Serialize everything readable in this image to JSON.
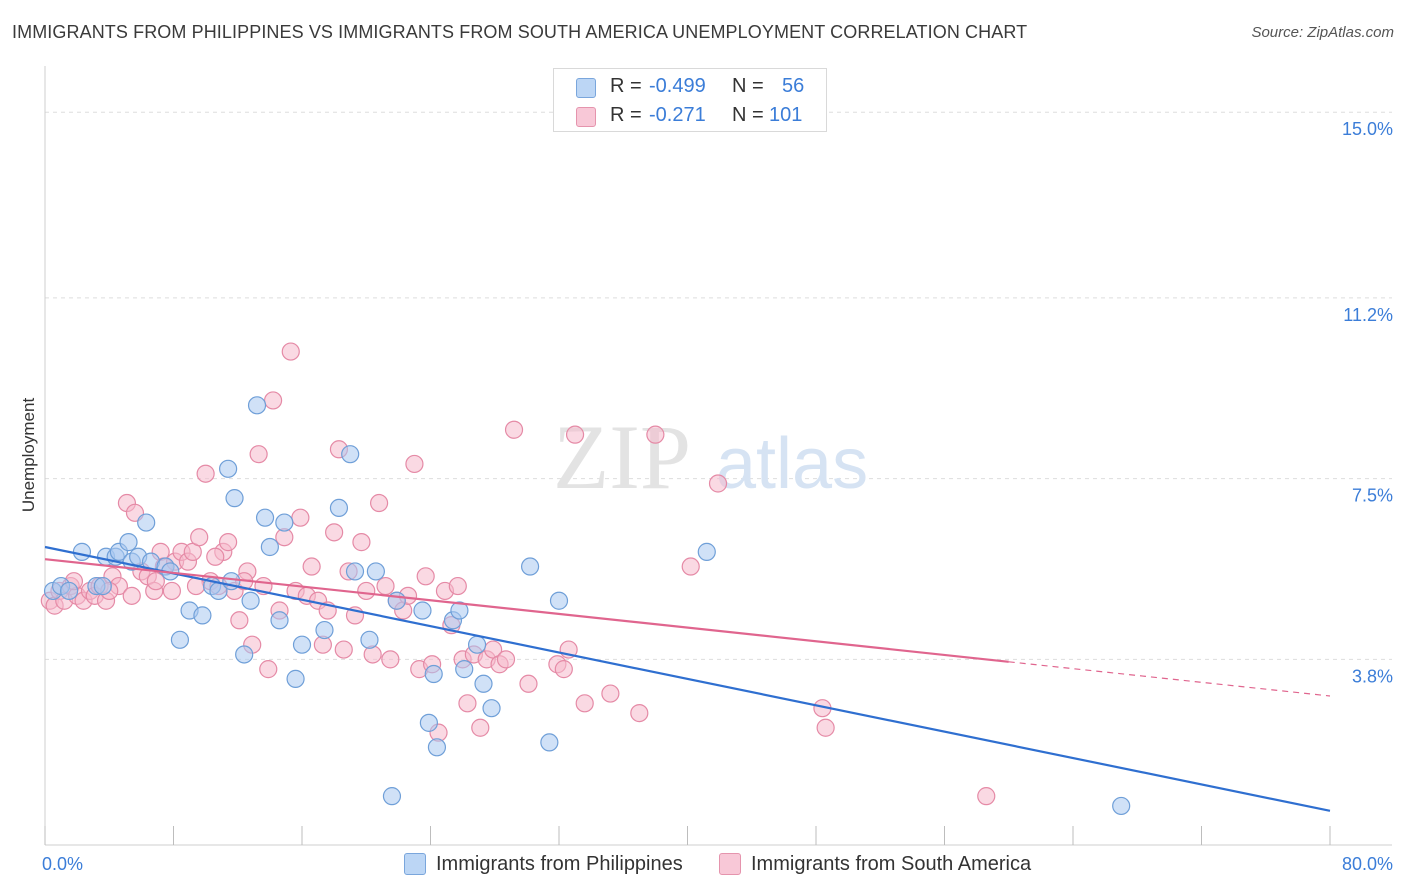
{
  "title": "IMMIGRANTS FROM PHILIPPINES VS IMMIGRANTS FROM SOUTH AMERICA UNEMPLOYMENT CORRELATION CHART",
  "source": "Source: ZipAtlas.com",
  "watermark": {
    "zip": "ZIP",
    "atlas": "atlas"
  },
  "legend_top": [
    {
      "r_label": "R =",
      "r_value": "-0.499",
      "n_label": "N =",
      "n_value": "56"
    },
    {
      "r_label": "R =",
      "r_value": "-0.271",
      "n_label": "N =",
      "n_value": "101"
    }
  ],
  "legend_bottom": [
    {
      "label": "Immigrants from Philippines"
    },
    {
      "label": "Immigrants from South America"
    }
  ],
  "colors": {
    "blue_fill": "#a9c8f0",
    "blue_stroke": "#6f9fd8",
    "blue_line": "#2f6fd0",
    "pink_fill": "#f5b9cc",
    "pink_stroke": "#e58aa6",
    "pink_line": "#e0658e",
    "axis_label": "#3b7dd8",
    "grid": "#dddddd"
  },
  "chart_data": {
    "type": "scatter",
    "title": "IMMIGRANTS FROM PHILIPPINES VS IMMIGRANTS FROM SOUTH AMERICA UNEMPLOYMENT CORRELATION CHART",
    "xlabel": "",
    "ylabel": "Unemployment",
    "xlim": [
      0,
      80
    ],
    "ylim": [
      0,
      15.7
    ],
    "x_tick_labels": [
      "0.0%",
      "80.0%"
    ],
    "y_ticks": [
      3.8,
      7.5,
      11.2,
      15.0
    ],
    "y_tick_labels": [
      "3.8%",
      "7.5%",
      "11.2%",
      "15.0%"
    ],
    "x_ticks_minor": [
      0,
      8,
      16,
      24,
      32,
      40,
      48,
      56,
      64,
      72,
      80
    ],
    "series": [
      {
        "name": "Immigrants from Philippines",
        "color": "blue",
        "points": [
          [
            0.5,
            5.2
          ],
          [
            1.0,
            5.3
          ],
          [
            1.5,
            5.2
          ],
          [
            2.3,
            6.0
          ],
          [
            3.2,
            5.3
          ],
          [
            3.6,
            5.3
          ],
          [
            3.8,
            5.9
          ],
          [
            4.4,
            5.9
          ],
          [
            4.6,
            6.0
          ],
          [
            5.2,
            6.2
          ],
          [
            5.4,
            5.8
          ],
          [
            5.8,
            5.9
          ],
          [
            6.3,
            6.6
          ],
          [
            6.6,
            5.8
          ],
          [
            7.5,
            5.7
          ],
          [
            7.8,
            5.6
          ],
          [
            8.4,
            4.2
          ],
          [
            9.0,
            4.8
          ],
          [
            9.8,
            4.7
          ],
          [
            10.4,
            5.3
          ],
          [
            10.8,
            5.2
          ],
          [
            11.4,
            7.7
          ],
          [
            11.6,
            5.4
          ],
          [
            11.8,
            7.1
          ],
          [
            12.4,
            3.9
          ],
          [
            12.8,
            5.0
          ],
          [
            13.2,
            9.0
          ],
          [
            13.7,
            6.7
          ],
          [
            14.0,
            6.1
          ],
          [
            14.6,
            4.6
          ],
          [
            14.9,
            6.6
          ],
          [
            15.6,
            3.4
          ],
          [
            16.0,
            4.1
          ],
          [
            17.4,
            4.4
          ],
          [
            18.3,
            6.9
          ],
          [
            19.0,
            8.0
          ],
          [
            19.3,
            5.6
          ],
          [
            20.2,
            4.2
          ],
          [
            20.6,
            5.6
          ],
          [
            21.6,
            1.0
          ],
          [
            21.9,
            5.0
          ],
          [
            23.5,
            4.8
          ],
          [
            23.9,
            2.5
          ],
          [
            24.2,
            3.5
          ],
          [
            24.4,
            2.0
          ],
          [
            25.4,
            4.6
          ],
          [
            25.8,
            4.8
          ],
          [
            26.1,
            3.6
          ],
          [
            26.9,
            4.1
          ],
          [
            27.3,
            3.3
          ],
          [
            27.8,
            2.8
          ],
          [
            30.2,
            5.7
          ],
          [
            31.4,
            2.1
          ],
          [
            32.0,
            5.0
          ],
          [
            41.2,
            6.0
          ],
          [
            67.0,
            0.8
          ]
        ]
      },
      {
        "name": "Immigrants from South America",
        "color": "pink",
        "points": [
          [
            0.3,
            5.0
          ],
          [
            0.6,
            4.9
          ],
          [
            0.9,
            5.2
          ],
          [
            1.2,
            5.0
          ],
          [
            1.6,
            5.3
          ],
          [
            2.0,
            5.1
          ],
          [
            2.4,
            5.0
          ],
          [
            2.8,
            5.2
          ],
          [
            3.1,
            5.1
          ],
          [
            3.4,
            5.3
          ],
          [
            3.8,
            5.0
          ],
          [
            4.2,
            5.5
          ],
          [
            4.6,
            5.3
          ],
          [
            5.1,
            7.0
          ],
          [
            5.4,
            5.1
          ],
          [
            5.6,
            6.8
          ],
          [
            6.0,
            5.6
          ],
          [
            6.4,
            5.5
          ],
          [
            6.8,
            5.2
          ],
          [
            7.2,
            6.0
          ],
          [
            7.4,
            5.7
          ],
          [
            7.9,
            5.2
          ],
          [
            8.1,
            5.8
          ],
          [
            8.5,
            6.0
          ],
          [
            8.9,
            5.8
          ],
          [
            9.2,
            6.0
          ],
          [
            9.6,
            6.3
          ],
          [
            10.0,
            7.6
          ],
          [
            10.3,
            5.4
          ],
          [
            10.8,
            5.3
          ],
          [
            11.1,
            6.0
          ],
          [
            11.4,
            6.2
          ],
          [
            11.8,
            5.2
          ],
          [
            12.1,
            4.6
          ],
          [
            12.6,
            5.6
          ],
          [
            12.9,
            4.1
          ],
          [
            13.3,
            8.0
          ],
          [
            13.6,
            5.3
          ],
          [
            13.9,
            3.6
          ],
          [
            14.2,
            9.1
          ],
          [
            14.6,
            4.8
          ],
          [
            14.9,
            6.3
          ],
          [
            15.3,
            10.1
          ],
          [
            15.6,
            5.2
          ],
          [
            15.9,
            6.7
          ],
          [
            16.3,
            5.1
          ],
          [
            16.6,
            5.7
          ],
          [
            17.0,
            5.0
          ],
          [
            17.3,
            4.1
          ],
          [
            17.6,
            4.8
          ],
          [
            18.0,
            6.4
          ],
          [
            18.3,
            8.1
          ],
          [
            18.6,
            4.0
          ],
          [
            18.9,
            5.6
          ],
          [
            19.3,
            4.7
          ],
          [
            19.7,
            6.2
          ],
          [
            20.0,
            5.2
          ],
          [
            20.4,
            3.9
          ],
          [
            20.8,
            7.0
          ],
          [
            21.2,
            5.3
          ],
          [
            21.5,
            3.8
          ],
          [
            21.9,
            5.0
          ],
          [
            22.3,
            4.8
          ],
          [
            22.6,
            5.1
          ],
          [
            23.0,
            7.8
          ],
          [
            23.3,
            3.6
          ],
          [
            23.7,
            5.5
          ],
          [
            24.1,
            3.7
          ],
          [
            24.5,
            2.3
          ],
          [
            24.9,
            5.2
          ],
          [
            25.3,
            4.5
          ],
          [
            25.7,
            5.3
          ],
          [
            26.0,
            3.8
          ],
          [
            26.3,
            2.9
          ],
          [
            26.7,
            3.9
          ],
          [
            27.1,
            2.4
          ],
          [
            27.5,
            3.8
          ],
          [
            27.9,
            4.0
          ],
          [
            28.3,
            3.7
          ],
          [
            28.7,
            3.8
          ],
          [
            29.2,
            8.5
          ],
          [
            30.1,
            3.3
          ],
          [
            31.9,
            3.7
          ],
          [
            32.3,
            3.6
          ],
          [
            32.6,
            4.0
          ],
          [
            33.0,
            8.4
          ],
          [
            33.6,
            2.9
          ],
          [
            35.2,
            3.1
          ],
          [
            37.0,
            2.7
          ],
          [
            38.0,
            8.4
          ],
          [
            40.2,
            5.7
          ],
          [
            41.9,
            7.4
          ],
          [
            48.4,
            2.8
          ],
          [
            48.6,
            2.4
          ],
          [
            58.6,
            1.0
          ],
          [
            1.8,
            5.4
          ],
          [
            4.0,
            5.2
          ],
          [
            6.9,
            5.4
          ],
          [
            9.4,
            5.3
          ],
          [
            10.6,
            5.9
          ],
          [
            12.4,
            5.4
          ]
        ]
      }
    ],
    "trend_lines": [
      {
        "series": "Immigrants from Philippines",
        "x": [
          0,
          80
        ],
        "y": [
          6.1,
          0.7
        ],
        "dashed_from": null
      },
      {
        "series": "Immigrants from South America",
        "x": [
          0,
          80
        ],
        "y": [
          5.85,
          3.05
        ],
        "dashed_from": 60
      }
    ]
  }
}
